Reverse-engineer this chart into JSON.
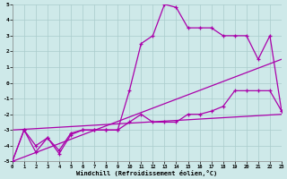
{
  "xlabel": "Windchill (Refroidissement éolien,°C)",
  "xlim": [
    0,
    23
  ],
  "ylim": [
    -5,
    5
  ],
  "xticks": [
    0,
    1,
    2,
    3,
    4,
    5,
    6,
    7,
    8,
    9,
    10,
    11,
    12,
    13,
    14,
    15,
    16,
    17,
    18,
    19,
    20,
    21,
    22,
    23
  ],
  "yticks": [
    -5,
    -4,
    -3,
    -2,
    -1,
    0,
    1,
    2,
    3,
    4,
    5
  ],
  "bg_color": "#cee9e9",
  "line_color": "#aa00aa",
  "grid_color": "#aacccc",
  "line1_x": [
    0,
    1,
    2,
    3,
    4,
    5,
    6,
    7,
    8,
    9,
    10,
    11,
    12,
    13,
    14,
    15,
    16,
    17,
    18,
    19,
    20,
    21,
    22,
    23
  ],
  "line1_y": [
    -5.0,
    -3.0,
    -4.4,
    -3.5,
    -4.3,
    -3.2,
    -3.0,
    -3.0,
    -3.0,
    -3.0,
    -0.5,
    2.5,
    3.0,
    5.0,
    4.8,
    3.5,
    3.5,
    3.5,
    3.0,
    3.0,
    3.0,
    1.5,
    3.0,
    -1.8
  ],
  "line1_markers": [
    0,
    1,
    2,
    3,
    4,
    5,
    6,
    7,
    8,
    9,
    10,
    11,
    12,
    13,
    14,
    15,
    16,
    17,
    18,
    19,
    20,
    21,
    22,
    23
  ],
  "line2_x": [
    0,
    1,
    2,
    3,
    4,
    5,
    6,
    7,
    8,
    9,
    10,
    11,
    12,
    13,
    14,
    15,
    16,
    17,
    18,
    19,
    20,
    21,
    22,
    23
  ],
  "line2_y": [
    -5.0,
    -3.0,
    -4.0,
    -3.5,
    -4.5,
    -3.3,
    -3.0,
    -3.0,
    -3.0,
    -3.0,
    -2.5,
    -2.0,
    -2.5,
    -2.5,
    -2.5,
    -2.0,
    -2.0,
    -1.8,
    -1.5,
    -0.5,
    -0.5,
    -0.5,
    -0.5,
    -1.8
  ],
  "line2_markers": [
    0,
    1,
    2,
    3,
    4,
    5,
    6,
    7,
    8,
    9,
    10,
    11,
    12,
    13,
    14,
    15,
    16,
    17,
    18,
    19,
    20,
    21,
    22,
    23
  ],
  "line3_x": [
    0,
    23
  ],
  "line3_y": [
    -5.0,
    1.5
  ],
  "line4_x": [
    0,
    23
  ],
  "line4_y": [
    -3.0,
    -2.0
  ]
}
